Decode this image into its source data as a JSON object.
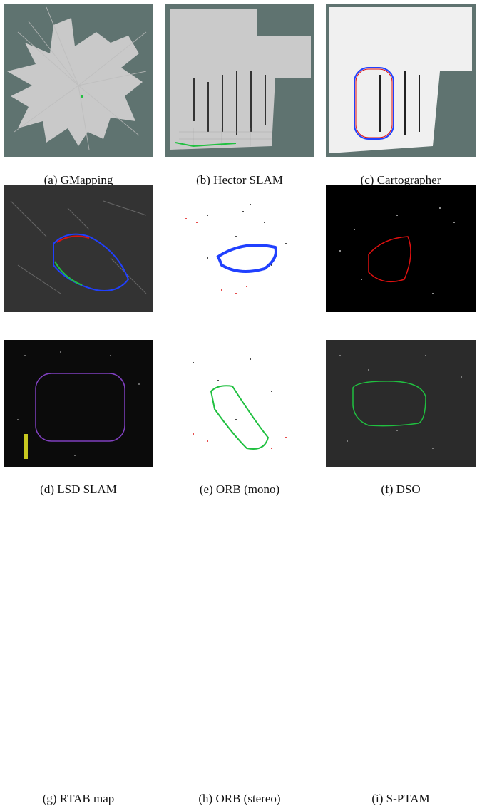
{
  "figure": {
    "panels": [
      {
        "id": "a",
        "caption": "(a) GMapping"
      },
      {
        "id": "b",
        "caption": "(b) Hector SLAM"
      },
      {
        "id": "c",
        "caption": "(c) Cartographer"
      },
      {
        "id": "d",
        "caption": "(d) LSD SLAM"
      },
      {
        "id": "e",
        "caption": "(e) ORB (mono)"
      },
      {
        "id": "f",
        "caption": "(f) DSO"
      },
      {
        "id": "g",
        "caption": "(g) RTAB map"
      },
      {
        "id": "h",
        "caption": "(h) ORB (stereo)"
      },
      {
        "id": "i",
        "caption": "(i) S-PTAM"
      }
    ]
  },
  "colors": {
    "rviz_bg": "#5f7370",
    "map_gray": "#c8c8c8",
    "dark_bg": "#2a2a2a",
    "black_bg": "#000000",
    "traj_blue": "#2040ff",
    "traj_red": "#e01010",
    "traj_green": "#20c040",
    "traj_purple": "#8040c0"
  }
}
